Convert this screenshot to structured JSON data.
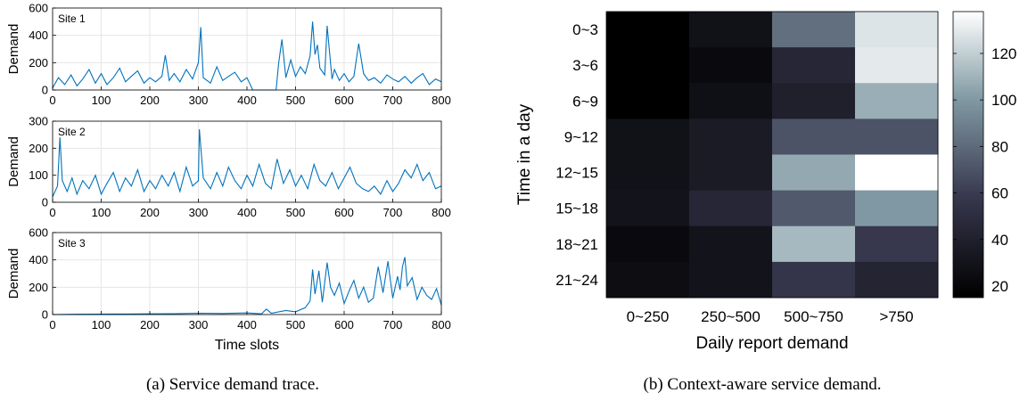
{
  "panels": {
    "a_caption": "(a) Service demand trace.",
    "b_caption": "(b) Context-aware service demand."
  },
  "colors": {
    "line": "#0072bd",
    "axis": "#000000",
    "grid": "#e6e6e6"
  },
  "chart_data": [
    {
      "type": "line",
      "title": "",
      "xlabel": "",
      "ylabel": "Demand",
      "annotation": "Site 1",
      "xlim": [
        0,
        800
      ],
      "ylim": [
        0,
        600
      ],
      "xticks": [
        "0",
        "100",
        "200",
        "300",
        "400",
        "500",
        "600",
        "700",
        "800"
      ],
      "yticks": [
        "0",
        "200",
        "400",
        "600"
      ],
      "grid": true,
      "series": [
        {
          "x": [
            0,
            12,
            25,
            38,
            50,
            62,
            75,
            88,
            100,
            112,
            125,
            138,
            150,
            162,
            175,
            188,
            200,
            212,
            225,
            232,
            240,
            250,
            262,
            275,
            288,
            300,
            305,
            310,
            325,
            338,
            350,
            362,
            375,
            388,
            400,
            412,
            425,
            440,
            452,
            460,
            465,
            472,
            480,
            490,
            500,
            510,
            520,
            530,
            535,
            540,
            545,
            550,
            560,
            565,
            575,
            580,
            590,
            600,
            610,
            620,
            630,
            640,
            650,
            662,
            675,
            688,
            700,
            712,
            725,
            738,
            750,
            762,
            775,
            788,
            800
          ],
          "y": [
            15,
            90,
            40,
            110,
            30,
            80,
            150,
            50,
            120,
            40,
            90,
            160,
            60,
            100,
            140,
            50,
            90,
            60,
            100,
            255,
            70,
            120,
            60,
            150,
            80,
            200,
            460,
            90,
            50,
            170,
            70,
            100,
            130,
            60,
            90,
            0,
            0,
            0,
            0,
            0,
            190,
            370,
            90,
            220,
            100,
            170,
            120,
            250,
            500,
            260,
            330,
            160,
            110,
            470,
            80,
            150,
            70,
            120,
            60,
            100,
            340,
            120,
            70,
            90,
            50,
            110,
            80,
            60,
            100,
            50,
            90,
            120,
            40,
            80,
            60
          ]
        }
      ]
    },
    {
      "type": "line",
      "title": "",
      "xlabel": "",
      "ylabel": "Demand",
      "annotation": "Site 2",
      "xlim": [
        0,
        800
      ],
      "ylim": [
        0,
        300
      ],
      "xticks": [
        "0",
        "100",
        "200",
        "300",
        "400",
        "500",
        "600",
        "700",
        "800"
      ],
      "yticks": [
        "0",
        "100",
        "200",
        "300"
      ],
      "grid": true,
      "series": [
        {
          "x": [
            0,
            10,
            15,
            20,
            30,
            40,
            50,
            62,
            75,
            88,
            100,
            112,
            125,
            138,
            150,
            162,
            175,
            188,
            200,
            212,
            225,
            238,
            250,
            262,
            275,
            288,
            300,
            302,
            310,
            325,
            338,
            350,
            362,
            375,
            388,
            400,
            412,
            425,
            438,
            450,
            462,
            475,
            488,
            500,
            512,
            525,
            538,
            550,
            562,
            575,
            588,
            600,
            612,
            625,
            638,
            650,
            662,
            675,
            688,
            700,
            712,
            725,
            738,
            750,
            762,
            775,
            788,
            800
          ],
          "y": [
            20,
            60,
            240,
            80,
            40,
            90,
            30,
            80,
            50,
            100,
            30,
            70,
            110,
            40,
            90,
            60,
            120,
            40,
            80,
            50,
            100,
            60,
            110,
            40,
            130,
            60,
            80,
            270,
            90,
            50,
            110,
            60,
            130,
            80,
            50,
            100,
            60,
            140,
            70,
            50,
            160,
            70,
            120,
            60,
            100,
            50,
            140,
            80,
            60,
            110,
            50,
            90,
            130,
            70,
            50,
            40,
            60,
            30,
            80,
            40,
            70,
            120,
            90,
            140,
            80,
            110,
            50,
            60
          ]
        }
      ]
    },
    {
      "type": "line",
      "title": "",
      "xlabel": "Time slots",
      "ylabel": "Demand",
      "annotation": "Site 3",
      "xlim": [
        0,
        800
      ],
      "ylim": [
        0,
        600
      ],
      "xticks": [
        "0",
        "100",
        "200",
        "300",
        "400",
        "500",
        "600",
        "700",
        "800"
      ],
      "yticks": [
        "0",
        "200",
        "400",
        "600"
      ],
      "grid": true,
      "series": [
        {
          "x": [
            0,
            50,
            100,
            150,
            200,
            250,
            300,
            350,
            400,
            430,
            440,
            450,
            480,
            500,
            520,
            530,
            535,
            540,
            548,
            555,
            565,
            572,
            580,
            590,
            600,
            610,
            620,
            630,
            640,
            650,
            660,
            670,
            680,
            690,
            700,
            710,
            715,
            720,
            725,
            730,
            740,
            750,
            760,
            770,
            780,
            790,
            800
          ],
          "y": [
            0,
            2,
            3,
            4,
            5,
            6,
            10,
            8,
            12,
            5,
            40,
            10,
            30,
            20,
            50,
            100,
            330,
            150,
            320,
            90,
            380,
            200,
            140,
            230,
            80,
            170,
            250,
            120,
            200,
            90,
            120,
            350,
            160,
            390,
            120,
            280,
            180,
            350,
            420,
            210,
            270,
            110,
            200,
            140,
            110,
            190,
            70
          ]
        }
      ]
    },
    {
      "type": "heatmap",
      "title": "",
      "xlabel": "Daily report demand",
      "ylabel": "Time in a day",
      "x_categories": [
        "0~250",
        "250~500",
        "500~750",
        ">750"
      ],
      "y_categories": [
        "0~3",
        "3~6",
        "6~9",
        "9~12",
        "12~15",
        "15~18",
        "18~21",
        "21~24"
      ],
      "values": [
        [
          15,
          28,
          82,
          128
        ],
        [
          15,
          23,
          45,
          130
        ],
        [
          15,
          27,
          40,
          108
        ],
        [
          28,
          36,
          70,
          70
        ],
        [
          28,
          36,
          106,
          138
        ],
        [
          30,
          45,
          73,
          100
        ],
        [
          23,
          30,
          112,
          58
        ],
        [
          25,
          30,
          56,
          43
        ]
      ],
      "colorbar": {
        "min": 15,
        "max": 138,
        "ticks": [
          "20",
          "40",
          "60",
          "80",
          "100",
          "120"
        ]
      }
    }
  ]
}
